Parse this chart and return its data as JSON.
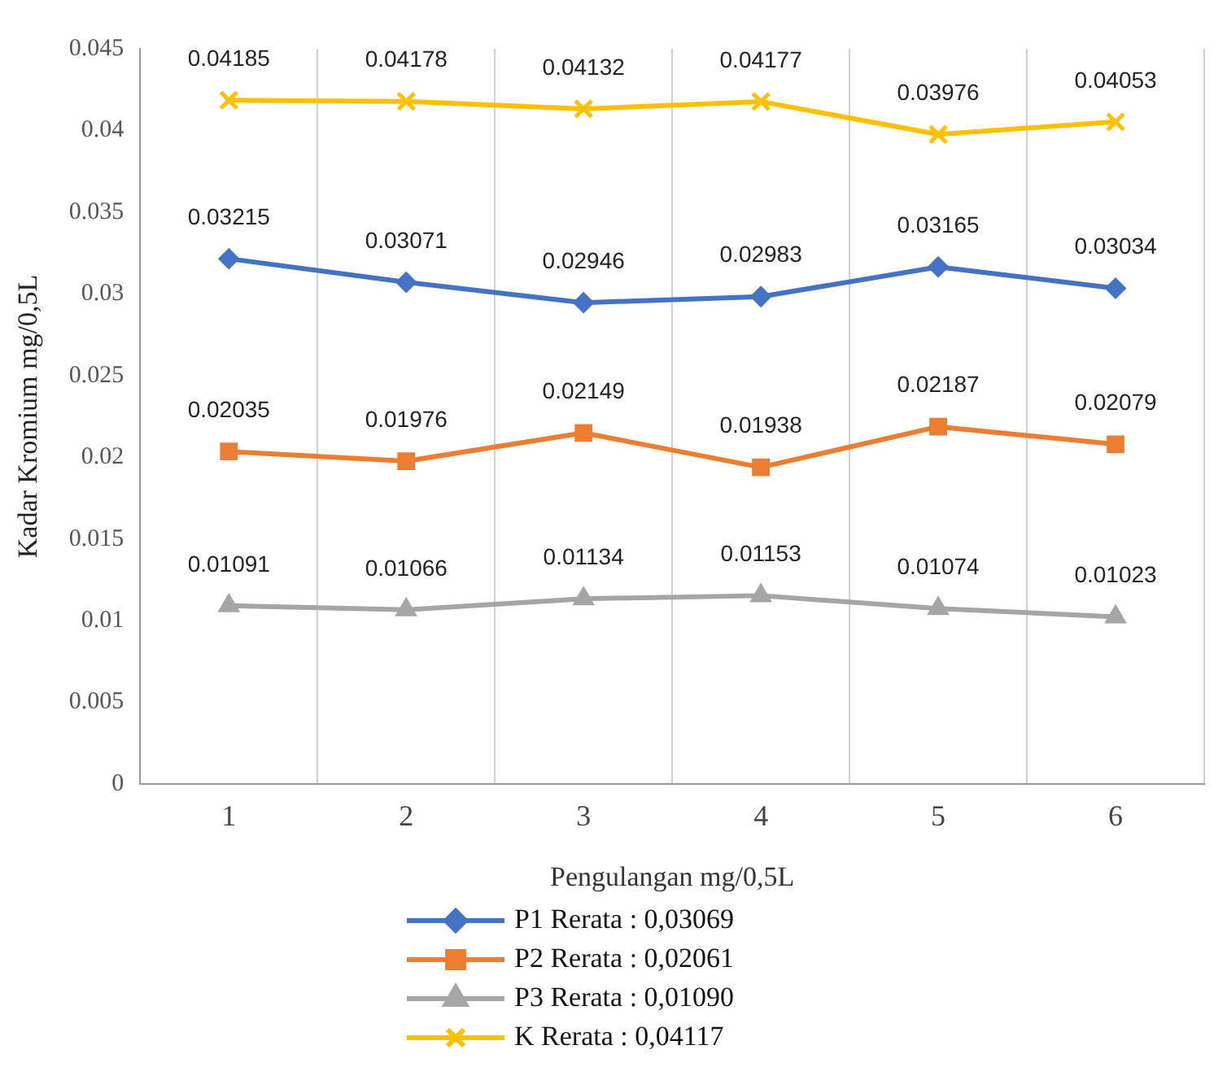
{
  "chart_data": {
    "type": "line",
    "xlabel": "Pengulangan mg/0,5L",
    "ylabel": "Kadar Kromium mg/0,5L",
    "categories": [
      "1",
      "2",
      "3",
      "4",
      "5",
      "6"
    ],
    "series": [
      {
        "name": "P1 Rerata : 0,03069",
        "color": "#4472c4",
        "marker": "diamond",
        "values": [
          0.03215,
          0.03071,
          0.02946,
          0.02983,
          0.03165,
          0.03034
        ]
      },
      {
        "name": "P2 Rerata : 0,02061",
        "color": "#ed7d31",
        "marker": "square",
        "values": [
          0.02035,
          0.01976,
          0.02149,
          0.01938,
          0.02187,
          0.02079
        ]
      },
      {
        "name": "P3 Rerata : 0,01090",
        "color": "#a5a5a5",
        "marker": "triangle",
        "values": [
          0.01091,
          0.01066,
          0.01134,
          0.01153,
          0.01074,
          0.01023
        ]
      },
      {
        "name": "K Rerata : 0,04117",
        "color": "#ffc000",
        "marker": "cross",
        "values": [
          0.04185,
          0.04178,
          0.04132,
          0.04177,
          0.03976,
          0.04053
        ]
      }
    ],
    "ylim": [
      0,
      0.045
    ],
    "yticks": [
      0,
      0.005,
      0.01,
      0.015,
      0.02,
      0.025,
      0.03,
      0.035,
      0.04,
      0.045
    ],
    "grid": "x",
    "legend": "bottom",
    "data_labels": true
  }
}
